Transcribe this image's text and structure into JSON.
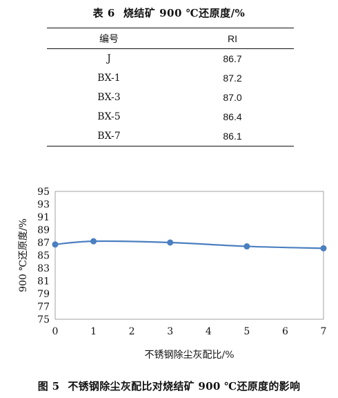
{
  "table": {
    "label": "表 6",
    "title": "烧结矿 900 ℃还原度/%",
    "headers": [
      "编号",
      "RI"
    ],
    "rows": [
      {
        "id": "J",
        "ri": "86.7"
      },
      {
        "id": "BX-1",
        "ri": "87.2"
      },
      {
        "id": "BX-3",
        "ri": "87.0"
      },
      {
        "id": "BX-5",
        "ri": "86.4"
      },
      {
        "id": "BX-7",
        "ri": "86.1"
      }
    ]
  },
  "chart_data": {
    "type": "line",
    "x": [
      0,
      1,
      3,
      5,
      7
    ],
    "series": [
      {
        "values": [
          86.7,
          87.2,
          87.0,
          86.4,
          86.1
        ]
      }
    ],
    "xlabel": "不锈钢除尘灰配比/%",
    "ylabel": "900 ℃还原度/%",
    "xlim": [
      0,
      7
    ],
    "ylim": [
      75,
      95
    ],
    "xticks": [
      0,
      1,
      2,
      3,
      4,
      5,
      6,
      7
    ],
    "yticks": [
      75,
      77,
      79,
      81,
      83,
      85,
      87,
      89,
      91,
      93,
      95
    ],
    "grid": false,
    "line_color": "#4a7fc0"
  },
  "figure": {
    "label": "图 5",
    "caption": "不锈钢除尘灰配比对烧结矿 900 ℃还原度的影响"
  }
}
